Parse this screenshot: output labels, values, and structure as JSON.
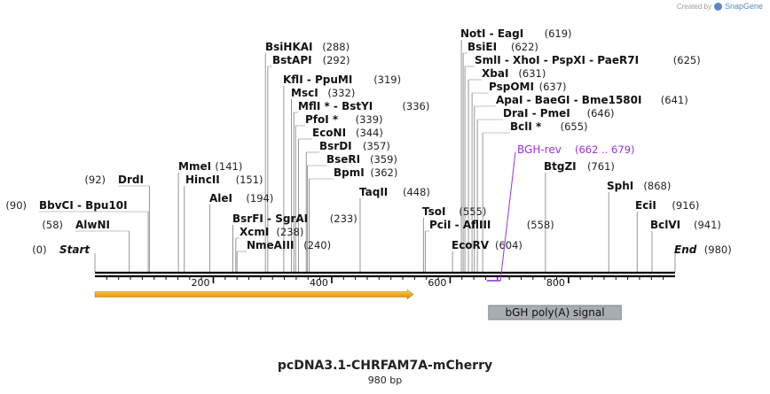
{
  "credit": {
    "prefix": "Created by",
    "brand": "SnapGene"
  },
  "plasmid": {
    "name": "pcDNA3.1-CHRFAM7A-mCherry",
    "length_label": "980 bp"
  },
  "colors": {
    "backbone": "#000000",
    "primer": "#9b30d9",
    "feature_arrow": "#f0a000",
    "polyA_box": "#a8adb3"
  },
  "ruler": {
    "ticks": [
      {
        "pos": 200,
        "label": "200"
      },
      {
        "pos": 400,
        "label": "400"
      },
      {
        "pos": 600,
        "label": "600"
      },
      {
        "pos": 800,
        "label": "800"
      }
    ]
  },
  "ends": {
    "start": {
      "name": "Start",
      "pos": 0,
      "pos_label": "(0)"
    },
    "end": {
      "name": "End",
      "pos": 980,
      "pos_label": "(980)"
    }
  },
  "sites": [
    {
      "name": "AlwNI",
      "pos": 58,
      "pos_label": "(58)"
    },
    {
      "name": "BbvCI - Bpu10I",
      "pos": 90,
      "pos_label": "(90)"
    },
    {
      "name": "DrdI",
      "pos": 92,
      "pos_label": "(92)"
    },
    {
      "name": "MmeI",
      "pos": 141,
      "pos_label": "(141)"
    },
    {
      "name": "HincII",
      "pos": 151,
      "pos_label": "(151)"
    },
    {
      "name": "AleI",
      "pos": 194,
      "pos_label": "(194)"
    },
    {
      "name": "BsrFI - SgrAI",
      "pos": 233,
      "pos_label": "(233)"
    },
    {
      "name": "XcmI",
      "pos": 238,
      "pos_label": "(238)"
    },
    {
      "name": "NmeAIII",
      "pos": 240,
      "pos_label": "(240)"
    },
    {
      "name": "BsiHKAI",
      "pos": 288,
      "pos_label": "(288)"
    },
    {
      "name": "BstAPI",
      "pos": 292,
      "pos_label": "(292)"
    },
    {
      "name": "KflI - PpuMI",
      "pos": 319,
      "pos_label": "(319)"
    },
    {
      "name": "MscI",
      "pos": 332,
      "pos_label": "(332)"
    },
    {
      "name": "MflI * - BstYI",
      "pos": 336,
      "pos_label": "(336)"
    },
    {
      "name": "PfoI *",
      "pos": 339,
      "pos_label": "(339)"
    },
    {
      "name": "EcoNI",
      "pos": 344,
      "pos_label": "(344)"
    },
    {
      "name": "BsrDI",
      "pos": 357,
      "pos_label": "(357)"
    },
    {
      "name": "BseRI",
      "pos": 359,
      "pos_label": "(359)"
    },
    {
      "name": "BpmI",
      "pos": 362,
      "pos_label": "(362)"
    },
    {
      "name": "TaqII",
      "pos": 448,
      "pos_label": "(448)"
    },
    {
      "name": "TsoI",
      "pos": 555,
      "pos_label": "(555)"
    },
    {
      "name": "PciI - AflIII",
      "pos": 558,
      "pos_label": "(558)"
    },
    {
      "name": "EcoRV",
      "pos": 604,
      "pos_label": "(604)"
    },
    {
      "name": "NotI - EagI",
      "pos": 619,
      "pos_label": "(619)"
    },
    {
      "name": "BsiEI",
      "pos": 622,
      "pos_label": "(622)"
    },
    {
      "name": "SmlI - XhoI - PspXI - PaeR7I",
      "pos": 625,
      "pos_label": "(625)"
    },
    {
      "name": "XbaI",
      "pos": 631,
      "pos_label": "(631)"
    },
    {
      "name": "PspOMI",
      "pos": 637,
      "pos_label": "(637)"
    },
    {
      "name": "ApaI - BaeGI - Bme1580I",
      "pos": 641,
      "pos_label": "(641)"
    },
    {
      "name": "DraI - PmeI",
      "pos": 646,
      "pos_label": "(646)"
    },
    {
      "name": "BclI *",
      "pos": 655,
      "pos_label": "(655)"
    },
    {
      "name": "BtgZI",
      "pos": 761,
      "pos_label": "(761)"
    },
    {
      "name": "SphI",
      "pos": 868,
      "pos_label": "(868)"
    },
    {
      "name": "EciI",
      "pos": 916,
      "pos_label": "(916)"
    },
    {
      "name": "BclVI",
      "pos": 941,
      "pos_label": "(941)"
    }
  ],
  "primer": {
    "name": "BGH-rev",
    "range_label": "(662 .. 679)",
    "start": 662,
    "end": 679
  },
  "features": [
    {
      "name": "",
      "type": "arrow",
      "start": 0,
      "end": 538
    },
    {
      "name": "bGH poly(A) signal",
      "type": "box",
      "start": 665,
      "end": 889
    }
  ]
}
